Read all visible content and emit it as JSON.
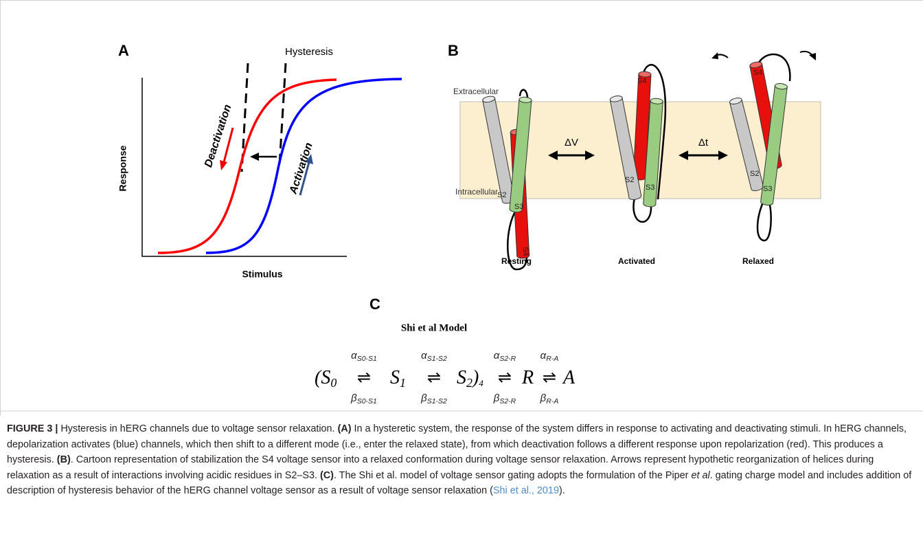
{
  "panel_a": {
    "label": "A",
    "title": "Hysteresis",
    "y_axis_label": "Response",
    "x_axis_label": "Stimulus",
    "deactivation_label": "Deactivation",
    "activation_label": "Activation"
  },
  "panel_b": {
    "label": "B",
    "extracellular_label": "Extracellular",
    "intracellular_label": "Intracellular",
    "transitions": [
      "ΔV",
      "Δt"
    ],
    "states": [
      {
        "name": "Resting",
        "helices": [
          "S2",
          "S3",
          "S4"
        ]
      },
      {
        "name": "Activated",
        "helices": [
          "S2",
          "S3",
          "S4"
        ]
      },
      {
        "name": "Relaxed",
        "helices": [
          "S2",
          "S3",
          "S4"
        ]
      }
    ]
  },
  "panel_c": {
    "label": "C",
    "title": "Shi et al Model",
    "arrow": "⇌",
    "species": [
      {
        "text": "(S",
        "sub": "0"
      },
      {
        "text": "S",
        "sub": "1"
      },
      {
        "text": "S",
        "sub": "2",
        "suffix": ")",
        "suffix_sub": "4"
      },
      {
        "text": "R"
      },
      {
        "text": "A"
      }
    ],
    "rates": [
      {
        "forward": "α",
        "forward_sub": "S0-S1",
        "backward": "β",
        "backward_sub": "S0-S1"
      },
      {
        "forward": "α",
        "forward_sub": "S1-S2",
        "backward": "β",
        "backward_sub": "S1-S2"
      },
      {
        "forward": "α",
        "forward_sub": "S2-R",
        "backward": "β",
        "backward_sub": "S2-R"
      },
      {
        "forward": "α",
        "forward_sub": "R-A",
        "backward": "β",
        "backward_sub": "R-A"
      }
    ]
  },
  "caption": {
    "segments": [
      {
        "text": "FIGURE 3 |",
        "bold": true
      },
      {
        "text": " Hysteresis in hERG channels due to voltage sensor relaxation. "
      },
      {
        "text": "(A)",
        "bold": true
      },
      {
        "text": " In a hysteretic system, the response of the system differs in response to activating and deactivating stimuli. In hERG channels, depolarization activates (blue) channels, which then shift to a different mode (i.e., enter the relaxed state), from which deactivation follows a different response upon repolarization (red). This produces a hysteresis. "
      },
      {
        "text": "(B)",
        "bold": true
      },
      {
        "text": ". Cartoon representation of stabilization the S4 voltage sensor into a relaxed conformation during voltage sensor relaxation. Arrows represent hypothetic reorganization of helices during relaxation as a result of interactions involving acidic residues in S2–S3. "
      },
      {
        "text": "(C)",
        "bold": true
      },
      {
        "text": ". The Shi et al. model of voltage sensor gating adopts the formulation of the Piper "
      },
      {
        "text": "et al",
        "italic": true
      },
      {
        "text": ". gating charge model and includes addition of description of hysteresis behavior of the hERG channel voltage sensor as a result of voltage sensor relaxation ("
      },
      {
        "text": "Shi et al., 2019",
        "link": true
      },
      {
        "text": ")."
      }
    ]
  }
}
